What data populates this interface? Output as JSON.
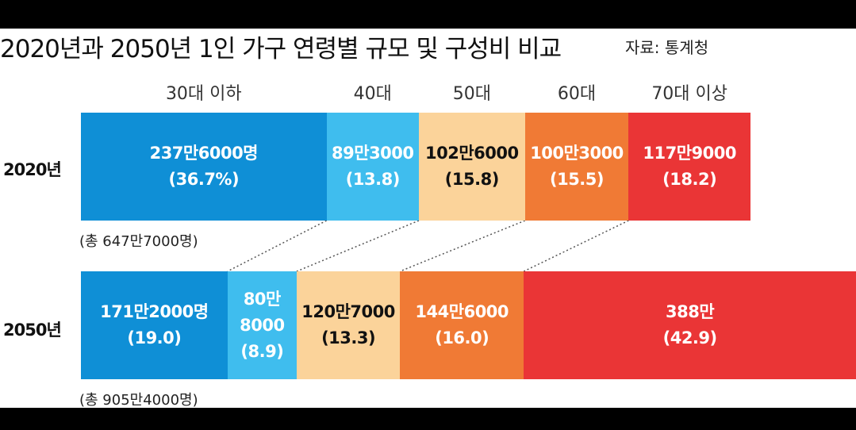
{
  "title": "2020년과 2050년 1인 가구 연령별 규모 및 구성비 비교",
  "source": "자료: 통계청",
  "chart_data": {
    "type": "bar",
    "stacked": "100%",
    "orientation": "horizontal",
    "categories": [
      "30대 이하",
      "40대",
      "50대",
      "60대",
      "70대 이상"
    ],
    "colors": [
      "#0f8fd6",
      "#3fbdee",
      "#fbd39a",
      "#f07a35",
      "#ea3536"
    ],
    "text_colors": [
      "#ffffff",
      "#ffffff",
      "#111111",
      "#ffffff",
      "#ffffff"
    ],
    "rows": [
      {
        "name": "2020년",
        "total": "(총 647만7000명)",
        "counts": [
          2376000,
          893000,
          1026000,
          1003000,
          1179000
        ],
        "percents": [
          36.7,
          13.8,
          15.8,
          15.5,
          18.2
        ],
        "value_labels": [
          "237만6000명",
          "89만3000",
          "102만6000",
          "100만3000",
          "117만9000"
        ],
        "percent_labels": [
          "(36.7%)",
          "(13.8)",
          "(15.8)",
          "(15.5)",
          "(18.2)"
        ]
      },
      {
        "name": "2050년",
        "total": "(총 905만4000명)",
        "counts": [
          1712000,
          808000,
          1207000,
          1446000,
          3880000
        ],
        "percents": [
          19.0,
          8.9,
          13.3,
          16.0,
          42.9
        ],
        "value_labels": [
          "171만2000명",
          "80만 8000",
          "120만7000",
          "144만6000",
          "388만"
        ],
        "percent_labels": [
          "(19.0)",
          "(8.9)",
          "(13.3)",
          "(16.0)",
          "(42.9)"
        ]
      }
    ]
  }
}
